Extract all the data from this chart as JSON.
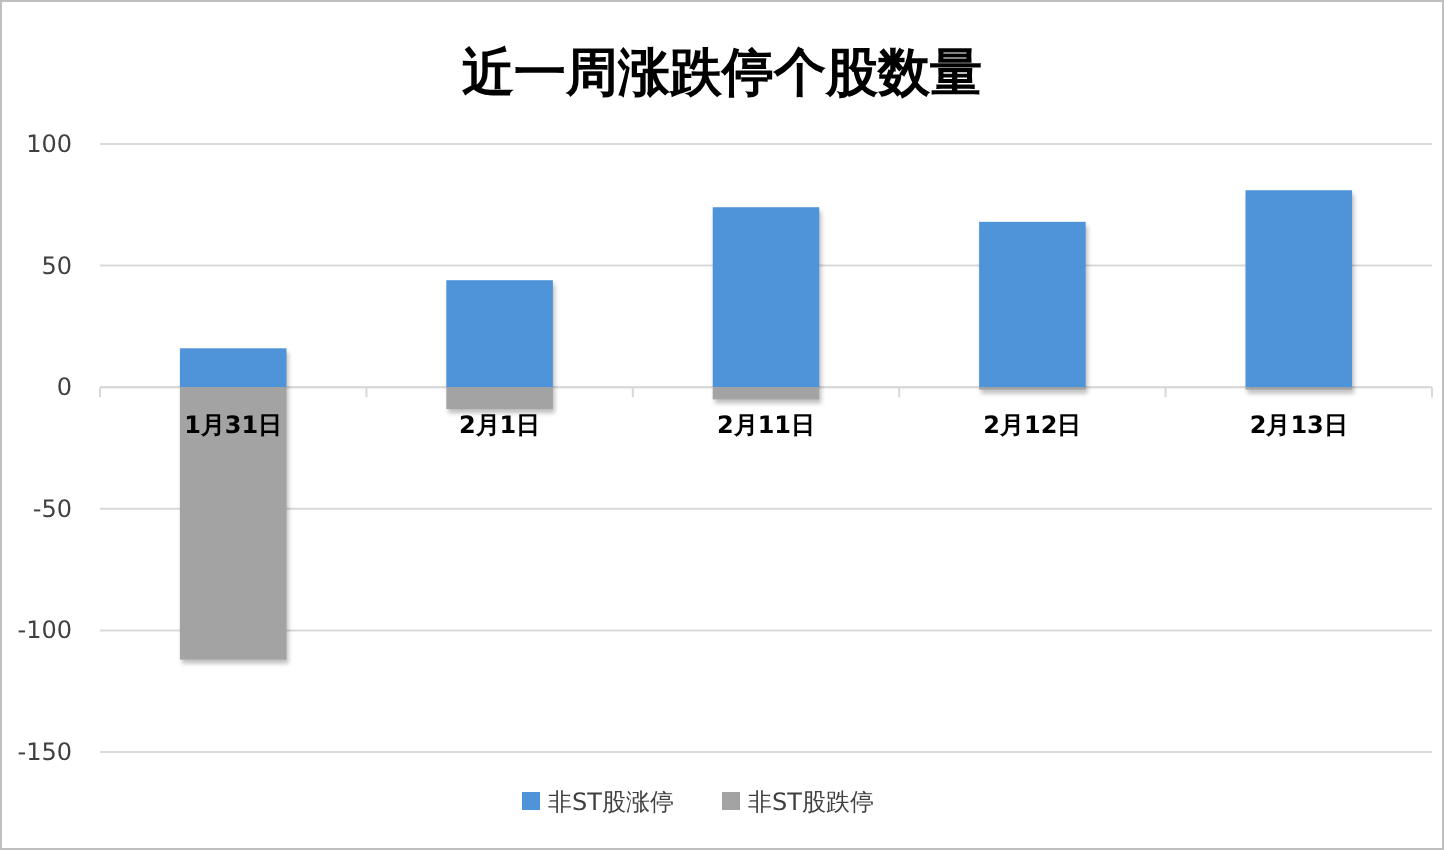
{
  "chart_data": {
    "type": "bar",
    "title": "近一周涨跌停个股数量",
    "categories": [
      "1月31日",
      "2月1日",
      "2月11日",
      "2月12日",
      "2月13日"
    ],
    "series": [
      {
        "name": "非ST股涨停",
        "color": "#4f94d8",
        "values": [
          16,
          44,
          74,
          68,
          81
        ]
      },
      {
        "name": "非ST股跌停",
        "color": "#a3a3a3",
        "values": [
          -112,
          -9,
          -5,
          -1,
          -1
        ]
      }
    ],
    "stacked": true,
    "ylim": [
      -150,
      100
    ],
    "yticks": [
      -150,
      -100,
      -50,
      0,
      50,
      100
    ],
    "grid": "y",
    "legend": "bottom"
  }
}
